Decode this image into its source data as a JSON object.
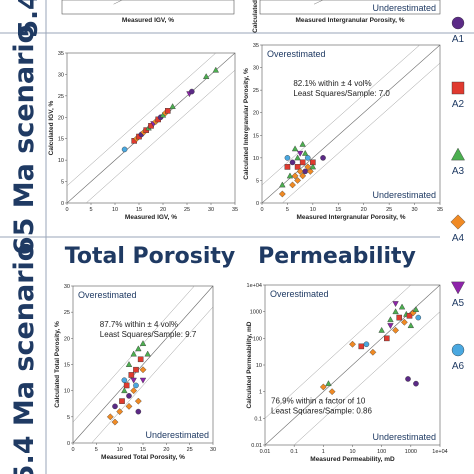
{
  "scenarios": {
    "s1": "5.4",
    "s2": "65 Ma scenario",
    "s3": "5.4 Ma scenario"
  },
  "headers": {
    "total_porosity": "Total Porosity",
    "permeability": "Permeability"
  },
  "legend": [
    {
      "label": "A1",
      "shape": "circle",
      "color": "#5b2a86"
    },
    {
      "label": "A2",
      "shape": "square",
      "color": "#e03a2f"
    },
    {
      "label": "A3",
      "shape": "triangle",
      "color": "#4caf50"
    },
    {
      "label": "A4",
      "shape": "diamond",
      "color": "#f08a24"
    },
    {
      "label": "A5",
      "shape": "triangle-down",
      "color": "#8e24aa"
    },
    {
      "label": "A6",
      "shape": "circle",
      "color": "#4aa8e0"
    }
  ],
  "chart_data": [
    {
      "type": "scatter",
      "id": "igv-top-partial",
      "xlabel": "Measured IGV, %"
    },
    {
      "type": "scatter",
      "id": "ip-top-partial",
      "xlabel": "Measured Intergranular Porosity, %",
      "ylabel": "Calculated",
      "annotations": {
        "under": "Underestimated"
      }
    },
    {
      "type": "scatter",
      "id": "igv-65",
      "xlabel": "Measured IGV, %",
      "ylabel": "Calculated IGV, %",
      "xlim": [
        0,
        35
      ],
      "ylim": [
        0,
        35
      ],
      "xticks": [
        "0",
        "5",
        "10",
        "15",
        "20",
        "25",
        "30",
        "35"
      ],
      "yticks": [
        "0",
        "5",
        "10",
        "15",
        "20",
        "25",
        "30",
        "35"
      ],
      "points": [
        {
          "g": 6,
          "x": 12,
          "y": 12.5
        },
        {
          "g": 2,
          "x": 14,
          "y": 14.5
        },
        {
          "g": 4,
          "x": 14.5,
          "y": 15
        },
        {
          "g": 2,
          "x": 15,
          "y": 15.5
        },
        {
          "g": 1,
          "x": 15.5,
          "y": 16
        },
        {
          "g": 4,
          "x": 16,
          "y": 16.5
        },
        {
          "g": 2,
          "x": 16.5,
          "y": 17
        },
        {
          "g": 3,
          "x": 17,
          "y": 17.5
        },
        {
          "g": 2,
          "x": 17.5,
          "y": 18
        },
        {
          "g": 5,
          "x": 18,
          "y": 18.5
        },
        {
          "g": 4,
          "x": 18.5,
          "y": 19
        },
        {
          "g": 2,
          "x": 19,
          "y": 19.5
        },
        {
          "g": 1,
          "x": 19.5,
          "y": 20
        },
        {
          "g": 3,
          "x": 20,
          "y": 20.5
        },
        {
          "g": 4,
          "x": 20.5,
          "y": 21
        },
        {
          "g": 2,
          "x": 21,
          "y": 21.5
        },
        {
          "g": 3,
          "x": 22,
          "y": 22.5
        },
        {
          "g": 5,
          "x": 25.5,
          "y": 25.5
        },
        {
          "g": 1,
          "x": 26,
          "y": 26
        },
        {
          "g": 3,
          "x": 29,
          "y": 29.5
        },
        {
          "g": 3,
          "x": 31,
          "y": 31
        }
      ]
    },
    {
      "type": "scatter",
      "id": "ip-65",
      "xlabel": "Measured Intergranular Porosity, %",
      "ylabel": "Calculated Intergranular Porosity, %",
      "xlim": [
        0,
        35
      ],
      "ylim": [
        0,
        35
      ],
      "xticks": [
        "0",
        "5",
        "10",
        "15",
        "20",
        "25",
        "30",
        "35"
      ],
      "yticks": [
        "0",
        "5",
        "10",
        "15",
        "20",
        "25",
        "30",
        "35"
      ],
      "annotations": {
        "over": "Overestimated",
        "under": "Underestimated",
        "stat1": "82.1% within ± 4 vol%",
        "stat2": "Least Squares/Sample: 7.0"
      },
      "points": [
        {
          "g": 4,
          "x": 4,
          "y": 2
        },
        {
          "g": 3,
          "x": 4,
          "y": 4
        },
        {
          "g": 6,
          "x": 5,
          "y": 10
        },
        {
          "g": 2,
          "x": 5,
          "y": 8
        },
        {
          "g": 3,
          "x": 5.5,
          "y": 6
        },
        {
          "g": 4,
          "x": 6,
          "y": 4
        },
        {
          "g": 1,
          "x": 6,
          "y": 9
        },
        {
          "g": 3,
          "x": 6.5,
          "y": 12
        },
        {
          "g": 4,
          "x": 6.5,
          "y": 6
        },
        {
          "g": 2,
          "x": 7,
          "y": 8
        },
        {
          "g": 4,
          "x": 7,
          "y": 5
        },
        {
          "g": 3,
          "x": 7,
          "y": 10
        },
        {
          "g": 5,
          "x": 7.5,
          "y": 11
        },
        {
          "g": 4,
          "x": 7.5,
          "y": 7
        },
        {
          "g": 2,
          "x": 8,
          "y": 9
        },
        {
          "g": 3,
          "x": 8,
          "y": 13
        },
        {
          "g": 4,
          "x": 8,
          "y": 6
        },
        {
          "g": 1,
          "x": 8.5,
          "y": 7
        },
        {
          "g": 3,
          "x": 8.5,
          "y": 11
        },
        {
          "g": 4,
          "x": 9,
          "y": 8
        },
        {
          "g": 6,
          "x": 9,
          "y": 10
        },
        {
          "g": 4,
          "x": 9.5,
          "y": 7
        },
        {
          "g": 2,
          "x": 10,
          "y": 9
        },
        {
          "g": 3,
          "x": 10,
          "y": 8
        },
        {
          "g": 1,
          "x": 12,
          "y": 10
        }
      ]
    },
    {
      "type": "scatter",
      "id": "tp-54",
      "xlabel": "Measured Total Porosity, %",
      "ylabel": "Calculated Total Porosity, %",
      "xlim": [
        0,
        30
      ],
      "ylim": [
        0,
        30
      ],
      "xticks": [
        "0",
        "5",
        "10",
        "15",
        "20",
        "25",
        "30"
      ],
      "yticks": [
        "0",
        "5",
        "10",
        "15",
        "20",
        "25",
        "30"
      ],
      "annotations": {
        "over": "Overestimated",
        "under": "Underestimated",
        "stat1": "87.7% within ± 4 vol%",
        "stat2": "Least Squares/Sample: 9.7"
      },
      "points": [
        {
          "g": 4,
          "x": 8,
          "y": 5
        },
        {
          "g": 4,
          "x": 9,
          "y": 4
        },
        {
          "g": 1,
          "x": 9,
          "y": 7
        },
        {
          "g": 4,
          "x": 10,
          "y": 6
        },
        {
          "g": 2,
          "x": 10.5,
          "y": 8
        },
        {
          "g": 3,
          "x": 11,
          "y": 10
        },
        {
          "g": 6,
          "x": 11,
          "y": 12
        },
        {
          "g": 2,
          "x": 11.5,
          "y": 11
        },
        {
          "g": 4,
          "x": 12,
          "y": 7
        },
        {
          "g": 3,
          "x": 12,
          "y": 15
        },
        {
          "g": 1,
          "x": 12,
          "y": 9
        },
        {
          "g": 2,
          "x": 12.5,
          "y": 13
        },
        {
          "g": 5,
          "x": 13,
          "y": 12
        },
        {
          "g": 4,
          "x": 13,
          "y": 10
        },
        {
          "g": 3,
          "x": 13,
          "y": 17
        },
        {
          "g": 2,
          "x": 13.5,
          "y": 14
        },
        {
          "g": 6,
          "x": 13.5,
          "y": 11
        },
        {
          "g": 3,
          "x": 14,
          "y": 18
        },
        {
          "g": 4,
          "x": 14,
          "y": 8
        },
        {
          "g": 1,
          "x": 14,
          "y": 6
        },
        {
          "g": 2,
          "x": 14.5,
          "y": 16
        },
        {
          "g": 3,
          "x": 15,
          "y": 19
        },
        {
          "g": 5,
          "x": 15,
          "y": 12
        },
        {
          "g": 4,
          "x": 15,
          "y": 14
        },
        {
          "g": 3,
          "x": 16,
          "y": 17
        }
      ]
    },
    {
      "type": "scatter",
      "id": "perm-54",
      "xlabel": "Measured Permeability, mD",
      "ylabel": "Calculated Permeability, mD",
      "scale": "log",
      "xlim": [
        0.01,
        10000
      ],
      "ylim": [
        0.01,
        10000
      ],
      "xticks": [
        "0.01",
        "0.1",
        "1",
        "10",
        "100",
        "1000",
        "1e+04"
      ],
      "yticks": [
        "0.01",
        "0.1",
        "1",
        "10",
        "100",
        "1000",
        "1e+04"
      ],
      "annotations": {
        "over": "Overestimated",
        "under": "Underestimated",
        "stat1": "76.9% within a factor of 10",
        "stat2": "Least Squares/Sample: 0.86"
      },
      "points": [
        {
          "g": 4,
          "x": 1,
          "y": 1.5
        },
        {
          "g": 4,
          "x": 2,
          "y": 1
        },
        {
          "g": 3,
          "x": 1.5,
          "y": 2
        },
        {
          "g": 6,
          "x": 30,
          "y": 60
        },
        {
          "g": 4,
          "x": 10,
          "y": 60
        },
        {
          "g": 2,
          "x": 20,
          "y": 50
        },
        {
          "g": 4,
          "x": 50,
          "y": 30
        },
        {
          "g": 3,
          "x": 100,
          "y": 200
        },
        {
          "g": 2,
          "x": 150,
          "y": 100
        },
        {
          "g": 3,
          "x": 200,
          "y": 500
        },
        {
          "g": 5,
          "x": 200,
          "y": 300
        },
        {
          "g": 4,
          "x": 300,
          "y": 200
        },
        {
          "g": 3,
          "x": 300,
          "y": 1000
        },
        {
          "g": 2,
          "x": 400,
          "y": 600
        },
        {
          "g": 3,
          "x": 500,
          "y": 1500
        },
        {
          "g": 4,
          "x": 600,
          "y": 400
        },
        {
          "g": 3,
          "x": 700,
          "y": 800
        },
        {
          "g": 1,
          "x": 800,
          "y": 3
        },
        {
          "g": 2,
          "x": 900,
          "y": 700
        },
        {
          "g": 3,
          "x": 1000,
          "y": 300
        },
        {
          "g": 4,
          "x": 1200,
          "y": 900
        },
        {
          "g": 1,
          "x": 1500,
          "y": 2
        },
        {
          "g": 3,
          "x": 1500,
          "y": 1200
        },
        {
          "g": 5,
          "x": 300,
          "y": 2000
        },
        {
          "g": 6,
          "x": 1800,
          "y": 600
        }
      ]
    }
  ]
}
